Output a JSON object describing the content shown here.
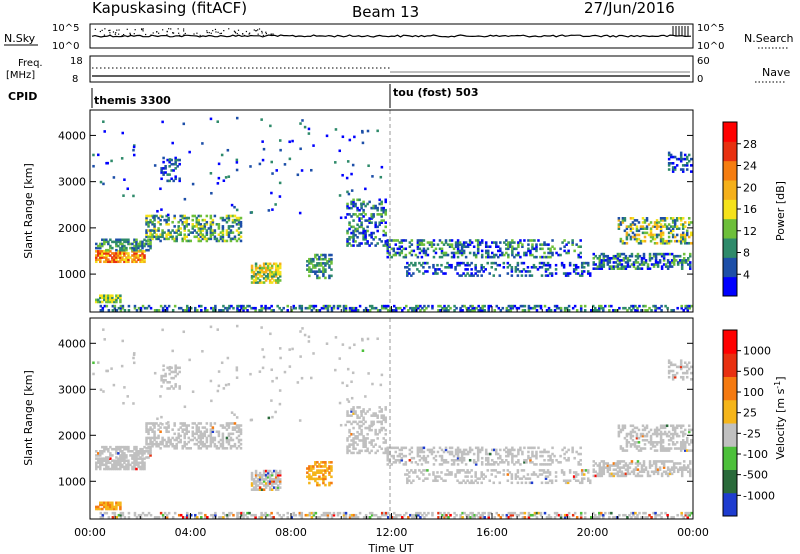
{
  "header": {
    "station": "Kapuskasing (fitACF)",
    "beam": "Beam 13",
    "date": "27/Jun/2016"
  },
  "params": {
    "nsky_label": "N.Sky",
    "nsearch_label": "N.Search",
    "freq_label": "Freq.",
    "freq_unit": "[MHz]",
    "nave_label": "Nave",
    "cpid_label": "CPID",
    "nsky_ticks": [
      "10^5",
      "10^0"
    ],
    "nsearch_ticks": [
      "10^5",
      "10^0"
    ],
    "freq_ticks": [
      "18",
      "8"
    ],
    "nave_ticks": [
      "60",
      "0"
    ]
  },
  "cpid": [
    {
      "label": "themis 3300",
      "start_hour": 0
    },
    {
      "label": "tou (fost) 503",
      "start_hour": 12
    }
  ],
  "colors": {
    "power_scale": [
      "#0000ff",
      "#1d4fa8",
      "#2e8a6a",
      "#6dbf3a",
      "#f5e21a",
      "#f5b01a",
      "#f57d10",
      "#e83010",
      "#ff0000"
    ],
    "velocity_scale": [
      "#1e3ccf",
      "#2a6a3a",
      "#4cc03a",
      "#c0c0c0",
      "#f5b51a",
      "#f57a10",
      "#e83010",
      "#ff0000"
    ],
    "ground_scatter": "#c0c0c0"
  },
  "chart_data": [
    {
      "type": "heatmap",
      "name": "power",
      "ylabel": "Slant Range [km]",
      "x_range_hours": [
        0,
        24
      ],
      "ylim": [
        180,
        4550
      ],
      "y_ticks": [
        1000,
        2000,
        3000,
        4000
      ],
      "colorbar": {
        "label": "Power [dB]",
        "ticks": [
          "28",
          "24",
          "20",
          "16",
          "12",
          "8",
          "4"
        ],
        "range": [
          0,
          30
        ]
      }
    },
    {
      "type": "heatmap",
      "name": "velocity",
      "ylabel": "Slant Range [km]",
      "xlabel": "Time UT",
      "x_range_hours": [
        0,
        24
      ],
      "ylim": [
        180,
        4550
      ],
      "y_ticks": [
        1000,
        2000,
        3000,
        4000
      ],
      "x_ticks": [
        "00:00",
        "04:00",
        "08:00",
        "12:00",
        "16:00",
        "20:00",
        "00:00"
      ],
      "colorbar": {
        "label": "Velocity [m s^-1]",
        "ticks": [
          "1000",
          "500",
          "100",
          "25",
          "-25",
          "-100",
          "-500",
          "-1000"
        ],
        "range": [
          -1000,
          1000
        ]
      }
    }
  ]
}
